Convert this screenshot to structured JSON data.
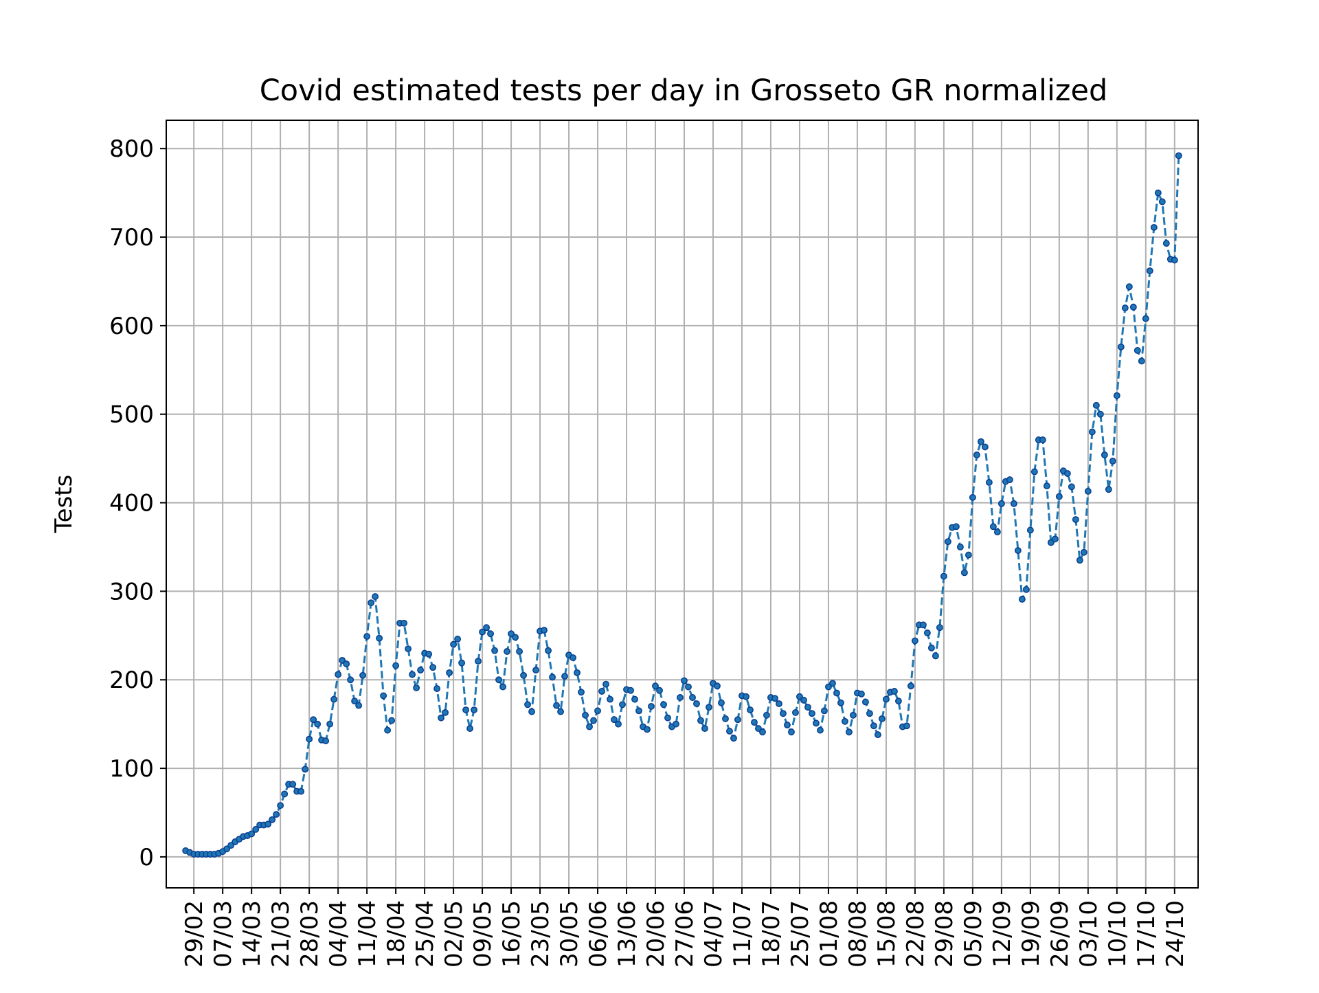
{
  "chart_data": {
    "type": "line",
    "title": "Covid estimated tests per day in Grosseto GR normalized",
    "xlabel": "",
    "ylabel": "Tests",
    "ylim": [
      -35,
      832
    ],
    "y_ticks": [
      0,
      100,
      200,
      300,
      400,
      500,
      600,
      700,
      800
    ],
    "x_start": "2020-02-27",
    "x_ticks": [
      "29/02",
      "07/03",
      "14/03",
      "21/03",
      "28/03",
      "04/04",
      "11/04",
      "18/04",
      "25/04",
      "02/05",
      "09/05",
      "16/05",
      "23/05",
      "30/05",
      "06/06",
      "13/06",
      "20/06",
      "27/06",
      "04/07",
      "11/07",
      "18/07",
      "25/07",
      "01/08",
      "08/08",
      "15/08",
      "22/08",
      "29/08",
      "05/09",
      "12/09",
      "19/09",
      "26/09",
      "03/10",
      "10/10",
      "17/10",
      "24/10"
    ],
    "grid": true,
    "line_color": "#1f77b4",
    "marker_color": "#1f77b4",
    "marker_edge_color": "#0a3d91",
    "line_style": "dashed",
    "series": [
      {
        "name": "",
        "values": [
          7,
          5,
          3,
          3,
          3,
          3,
          3,
          3,
          4,
          6,
          9,
          13,
          17,
          20,
          23,
          24,
          26,
          31,
          36,
          36,
          37,
          42,
          48,
          58,
          71,
          82,
          82,
          74,
          74,
          99,
          133,
          155,
          150,
          132,
          131,
          150,
          178,
          206,
          222,
          218,
          200,
          176,
          171,
          205,
          249,
          287,
          294,
          247,
          182,
          143,
          154,
          216,
          264,
          264,
          235,
          206,
          191,
          211,
          230,
          229,
          214,
          190,
          157,
          163,
          208,
          240,
          246,
          219,
          166,
          145,
          166,
          221,
          254,
          259,
          252,
          233,
          200,
          192,
          232,
          252,
          248,
          232,
          205,
          172,
          164,
          211,
          255,
          256,
          233,
          203,
          171,
          164,
          204,
          228,
          225,
          208,
          186,
          160,
          147,
          154,
          165,
          187,
          195,
          178,
          155,
          150,
          172,
          189,
          188,
          178,
          165,
          147,
          144,
          170,
          193,
          188,
          172,
          157,
          147,
          150,
          180,
          199,
          192,
          180,
          173,
          154,
          145,
          169,
          196,
          193,
          174,
          156,
          142,
          134,
          155,
          182,
          181,
          166,
          152,
          145,
          141,
          160,
          180,
          179,
          173,
          162,
          149,
          141,
          163,
          181,
          177,
          169,
          162,
          151,
          143,
          165,
          192,
          196,
          185,
          174,
          153,
          141,
          160,
          185,
          184,
          175,
          162,
          148,
          138,
          156,
          178,
          186,
          187,
          176,
          147,
          148,
          193,
          244,
          262,
          262,
          253,
          236,
          227,
          259,
          317,
          356,
          372,
          373,
          350,
          321,
          341,
          406,
          454,
          469,
          463,
          423,
          373,
          367,
          399,
          424,
          426,
          399,
          346,
          291,
          302,
          369,
          435,
          471,
          471,
          419,
          355,
          359,
          407,
          436,
          433,
          418,
          381,
          335,
          344,
          413,
          480,
          510,
          500,
          454,
          415,
          447,
          521,
          576,
          620,
          644,
          621,
          572,
          560,
          608,
          662,
          711,
          750,
          740,
          693,
          675,
          674,
          792
        ]
      }
    ]
  }
}
